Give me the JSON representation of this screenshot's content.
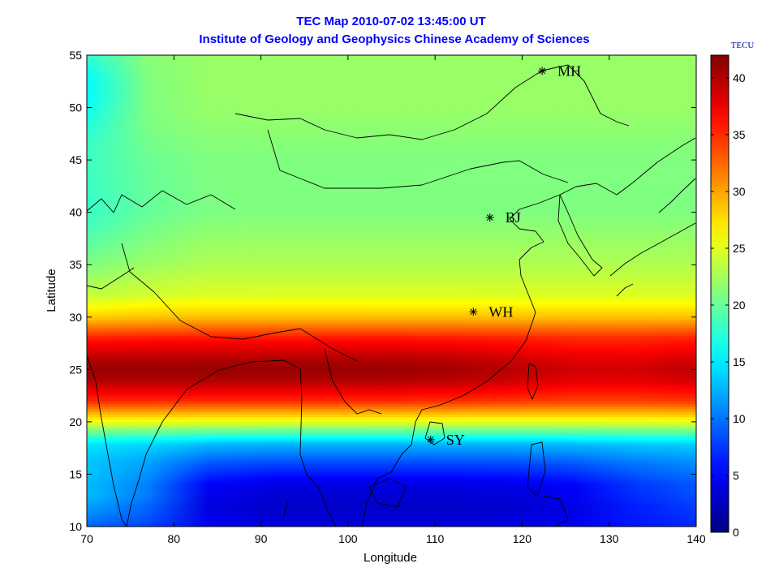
{
  "chart_data": {
    "type": "heatmap",
    "title": "TEC Map 2010-07-02 13:45:00 UT",
    "subtitle": "Institute of Geology and Geophysics Chinese Academy of Sciences",
    "xlabel": "Longitude",
    "ylabel": "Latitude",
    "xlim": [
      70,
      140
    ],
    "ylim": [
      10,
      55
    ],
    "xticks": [
      70,
      80,
      90,
      100,
      110,
      120,
      130,
      140
    ],
    "yticks": [
      10,
      15,
      20,
      25,
      30,
      35,
      40,
      45,
      50,
      55
    ],
    "colorbar": {
      "label": "TECU",
      "range": [
        0,
        42
      ],
      "ticks": [
        0,
        5,
        10,
        15,
        20,
        25,
        30,
        35,
        40
      ],
      "colormap": "jet",
      "placement": "right"
    },
    "latitude_profile": {
      "lat": [
        10,
        12,
        14,
        16,
        18,
        20,
        22,
        24,
        25,
        26,
        28,
        30,
        32,
        35,
        40,
        45,
        50,
        55
      ],
      "tec": [
        4,
        3,
        4,
        8,
        13,
        25,
        35,
        40,
        41,
        40,
        36,
        29,
        25,
        23,
        21,
        21,
        22,
        22
      ]
    },
    "stations": [
      {
        "name": "MH",
        "lon": 122.3,
        "lat": 53.5
      },
      {
        "name": "BJ",
        "lon": 116.3,
        "lat": 39.5
      },
      {
        "name": "WH",
        "lon": 114.4,
        "lat": 30.5
      },
      {
        "name": "SY",
        "lon": 109.5,
        "lat": 18.3
      }
    ]
  }
}
